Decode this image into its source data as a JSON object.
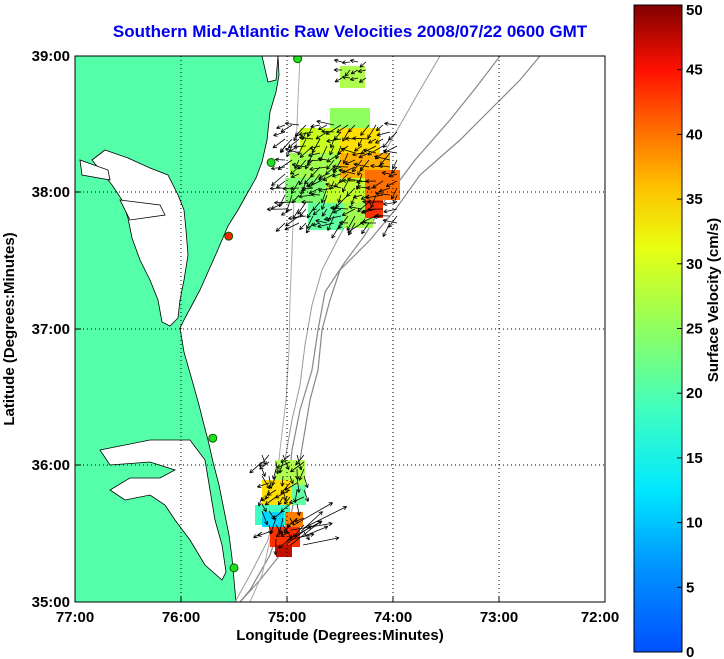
{
  "title": "Southern Mid-Atlantic Raw Velocities 2008/07/22 0600 GMT",
  "map": {
    "xlabel": "Longitude (Degrees:Minutes)",
    "ylabel": "Latitude (Degrees:Minutes)",
    "x_ticks": [
      "77:00",
      "76:00",
      "75:00",
      "74:00",
      "73:00",
      "72:00"
    ],
    "y_ticks": [
      "39:00",
      "38:00",
      "37:00",
      "36:00",
      "35:00"
    ],
    "xlim": [
      -77,
      -72
    ],
    "ylim": [
      35,
      39
    ],
    "land_color": "#55ffaa",
    "grid": "dotted"
  },
  "colorbar": {
    "label": "Surface Velocity (cm/s)",
    "ticks": [
      "0",
      "5",
      "10",
      "15",
      "20",
      "25",
      "30",
      "35",
      "40",
      "45",
      "50"
    ],
    "range": [
      0,
      50
    ],
    "colormap": "jet"
  },
  "stations": [
    {
      "lon": -74.9,
      "lat": 38.98,
      "status": "green"
    },
    {
      "lon": -75.15,
      "lat": 38.22,
      "status": "green"
    },
    {
      "lon": -75.55,
      "lat": 37.68,
      "status": "red"
    },
    {
      "lon": -75.7,
      "lat": 36.2,
      "status": "green"
    },
    {
      "lon": -75.5,
      "lat": 35.25,
      "status": "green"
    }
  ]
}
